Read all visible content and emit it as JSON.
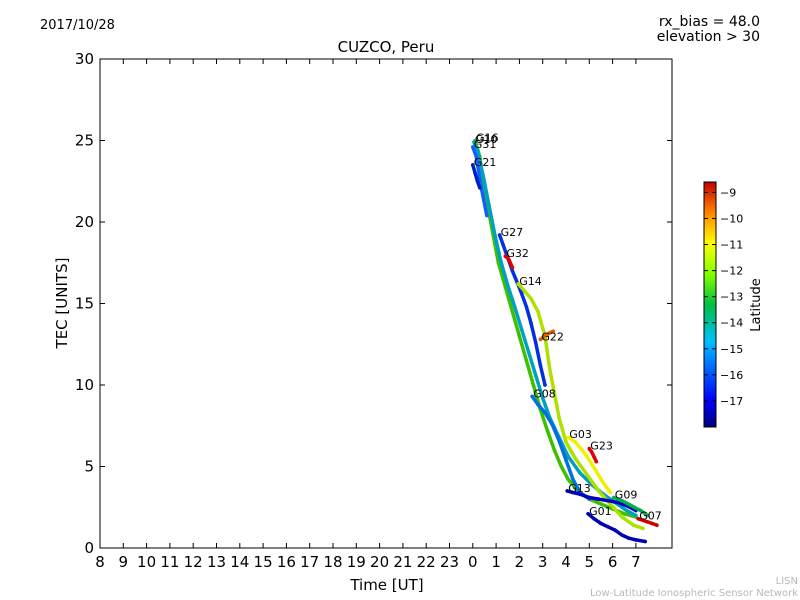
{
  "header": {
    "date": "2017/10/28",
    "rx_bias": "rx_bias = 48.0",
    "elevation": "elevation > 30"
  },
  "watermark": {
    "line1": "LISN",
    "line2": "Low-Latitude Ionospheric Sensor Network"
  },
  "chart_data": {
    "type": "scatter",
    "title": "CUZCO, Peru",
    "xlabel": "Time [UT]",
    "ylabel": "TEC [UNITS]",
    "x_tick_labels": [
      "8",
      "9",
      "10",
      "11",
      "12",
      "13",
      "14",
      "15",
      "16",
      "17",
      "18",
      "19",
      "20",
      "21",
      "22",
      "23",
      "0",
      "1",
      "2",
      "3",
      "4",
      "5",
      "6",
      "7"
    ],
    "y_ticks": [
      0,
      5,
      10,
      15,
      20,
      25,
      30
    ],
    "ylim": [
      0,
      30
    ],
    "colorbar": {
      "label": "Latitude",
      "ticks": [
        -9,
        -10,
        -11,
        -12,
        -13,
        -14,
        -15,
        -16,
        -17
      ],
      "range": [
        -18,
        -8.6
      ]
    },
    "series": [
      {
        "name": "G16",
        "color": "#3cc000",
        "points": [
          [
            0.1,
            25.0
          ],
          [
            0.3,
            24.0
          ],
          [
            0.5,
            22.0
          ],
          [
            0.7,
            20.5
          ],
          [
            0.9,
            19.0
          ],
          [
            1.1,
            17.5
          ],
          [
            1.4,
            16.0
          ],
          [
            1.7,
            14.5
          ],
          [
            2.0,
            13.0
          ],
          [
            2.3,
            11.5
          ],
          [
            2.6,
            10.0
          ],
          [
            2.9,
            8.5
          ],
          [
            3.2,
            7.2
          ],
          [
            3.5,
            6.0
          ],
          [
            3.8,
            5.0
          ],
          [
            4.1,
            4.2
          ],
          [
            4.5,
            3.5
          ],
          [
            5.0,
            3.0
          ],
          [
            5.5,
            2.7
          ],
          [
            6.0,
            2.4
          ],
          [
            6.5,
            2.1
          ],
          [
            7.0,
            1.9
          ]
        ]
      },
      {
        "name": "G10",
        "color": "#00a0c0",
        "points": [
          [
            0.05,
            24.9
          ],
          [
            0.2,
            24.4
          ],
          [
            0.45,
            22.8
          ],
          [
            0.7,
            21.0
          ],
          [
            0.95,
            19.2
          ],
          [
            1.2,
            17.6
          ],
          [
            1.5,
            16.1
          ],
          [
            1.8,
            14.8
          ],
          [
            2.1,
            13.4
          ],
          [
            2.4,
            12.0
          ],
          [
            2.7,
            10.6
          ],
          [
            3.0,
            9.2
          ],
          [
            3.3,
            8.0
          ],
          [
            3.7,
            6.8
          ],
          [
            4.1,
            5.6
          ],
          [
            4.6,
            4.6
          ],
          [
            5.1,
            3.9
          ],
          [
            5.6,
            3.3
          ],
          [
            6.1,
            2.8
          ],
          [
            6.6,
            2.3
          ],
          [
            7.0,
            2.0
          ]
        ]
      },
      {
        "name": "G31",
        "color": "#1060ff",
        "points": [
          [
            0.0,
            24.6
          ],
          [
            0.15,
            24.0
          ],
          [
            0.35,
            22.2
          ],
          [
            0.6,
            20.4
          ]
        ]
      },
      {
        "name": "G21",
        "color": "#0020c0",
        "points": [
          [
            0.0,
            23.5
          ],
          [
            0.1,
            23.0
          ],
          [
            0.2,
            22.5
          ],
          [
            0.3,
            22.1
          ]
        ]
      },
      {
        "name": "G27",
        "color": "#0030e0",
        "points": [
          [
            1.15,
            19.2
          ],
          [
            1.3,
            18.6
          ],
          [
            1.5,
            17.8
          ],
          [
            1.7,
            17.0
          ],
          [
            1.9,
            16.3
          ],
          [
            2.1,
            15.6
          ],
          [
            2.3,
            14.8
          ],
          [
            2.5,
            13.8
          ],
          [
            2.7,
            12.6
          ],
          [
            2.9,
            11.2
          ],
          [
            3.1,
            10.0
          ]
        ]
      },
      {
        "name": "G32",
        "color": "#e00000",
        "points": [
          [
            1.4,
            17.9
          ],
          [
            1.55,
            17.7
          ],
          [
            1.7,
            17.2
          ]
        ]
      },
      {
        "name": "G14",
        "color": "#b0e000",
        "points": [
          [
            1.95,
            16.2
          ],
          [
            2.2,
            15.8
          ],
          [
            2.5,
            15.3
          ],
          [
            2.8,
            14.5
          ],
          [
            3.1,
            13.0
          ],
          [
            3.3,
            11.0
          ],
          [
            3.5,
            9.5
          ],
          [
            3.7,
            8.0
          ],
          [
            4.0,
            6.5
          ],
          [
            4.4,
            5.5
          ],
          [
            4.9,
            4.5
          ],
          [
            5.4,
            3.5
          ],
          [
            5.9,
            2.7
          ],
          [
            6.4,
            1.9
          ],
          [
            6.9,
            1.4
          ],
          [
            7.3,
            1.2
          ]
        ]
      },
      {
        "name": "G22",
        "color": "#e06000",
        "points": [
          [
            2.9,
            12.8
          ],
          [
            3.1,
            13.0
          ],
          [
            3.3,
            13.2
          ],
          [
            3.45,
            13.3
          ]
        ]
      },
      {
        "name": "G08",
        "color": "#0070e0",
        "points": [
          [
            2.55,
            9.3
          ],
          [
            2.8,
            8.8
          ],
          [
            3.1,
            8.3
          ],
          [
            3.4,
            7.6
          ],
          [
            3.7,
            6.6
          ],
          [
            4.0,
            5.4
          ],
          [
            4.3,
            4.2
          ],
          [
            4.6,
            3.4
          ],
          [
            5.0,
            3.0
          ]
        ]
      },
      {
        "name": "G03",
        "color": "#f0f000",
        "points": [
          [
            4.1,
            6.8
          ],
          [
            4.4,
            6.5
          ],
          [
            4.7,
            6.0
          ],
          [
            5.0,
            5.4
          ],
          [
            5.3,
            4.7
          ],
          [
            5.6,
            4.0
          ],
          [
            5.9,
            3.4
          ]
        ]
      },
      {
        "name": "G23",
        "color": "#e00000",
        "points": [
          [
            5.0,
            6.1
          ],
          [
            5.1,
            5.9
          ],
          [
            5.2,
            5.6
          ],
          [
            5.3,
            5.3
          ]
        ]
      },
      {
        "name": "G13",
        "color": "#0000c0",
        "points": [
          [
            4.05,
            3.5
          ],
          [
            4.3,
            3.4
          ],
          [
            4.6,
            3.3
          ],
          [
            5.0,
            3.1
          ],
          [
            5.4,
            3.0
          ],
          [
            5.8,
            2.9
          ],
          [
            6.2,
            2.8
          ],
          [
            6.6,
            2.6
          ],
          [
            7.0,
            2.3
          ]
        ]
      },
      {
        "name": "G09",
        "color": "#00b050",
        "points": [
          [
            6.05,
            3.1
          ],
          [
            6.4,
            2.9
          ],
          [
            6.8,
            2.6
          ],
          [
            7.2,
            2.3
          ],
          [
            7.5,
            2.0
          ]
        ]
      },
      {
        "name": "G01",
        "color": "#0000b0",
        "points": [
          [
            4.95,
            2.1
          ],
          [
            5.2,
            1.8
          ],
          [
            5.5,
            1.5
          ],
          [
            5.8,
            1.3
          ],
          [
            6.1,
            1.1
          ],
          [
            6.4,
            0.8
          ],
          [
            6.7,
            0.6
          ],
          [
            7.0,
            0.5
          ],
          [
            7.4,
            0.4
          ]
        ]
      },
      {
        "name": "G07",
        "color": "#d00000",
        "points": [
          [
            7.1,
            1.8
          ],
          [
            7.3,
            1.7
          ],
          [
            7.5,
            1.6
          ],
          [
            7.7,
            1.5
          ],
          [
            7.9,
            1.4
          ]
        ]
      }
    ]
  }
}
